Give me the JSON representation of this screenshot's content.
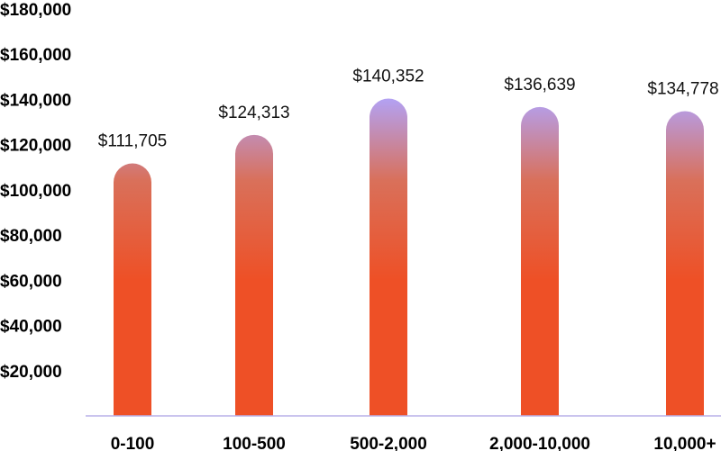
{
  "chart_data": {
    "type": "bar",
    "title": "",
    "xlabel": "",
    "ylabel": "",
    "categories": [
      "0-100",
      "100-500",
      "500-2,000",
      "2,000-10,000",
      "10,000+"
    ],
    "values": [
      111705,
      124313,
      140352,
      136639,
      134778
    ],
    "data_labels": [
      "$111,705",
      "$124,313",
      "$140,352",
      "$136,639",
      "$134,778"
    ],
    "ylim": [
      0,
      180000
    ],
    "y_ticks": [
      {
        "value": 20000,
        "label": "$20,000"
      },
      {
        "value": 40000,
        "label": "$40,000"
      },
      {
        "value": 60000,
        "label": "$60,000"
      },
      {
        "value": 80000,
        "label": "$80,000"
      },
      {
        "value": 100000,
        "label": "$100,000"
      },
      {
        "value": 120000,
        "label": "$120,000"
      },
      {
        "value": 140000,
        "label": "$140,000"
      },
      {
        "value": 160000,
        "label": "$160,000"
      },
      {
        "value": 180000,
        "label": "$180,000"
      }
    ],
    "grid": false,
    "legend": "none",
    "colors": {
      "bar_top": "#b3a1f2",
      "bar_mid": "#d9705a",
      "bar_bottom": "#ee5026",
      "axis_line": "#b9b1e8"
    }
  }
}
